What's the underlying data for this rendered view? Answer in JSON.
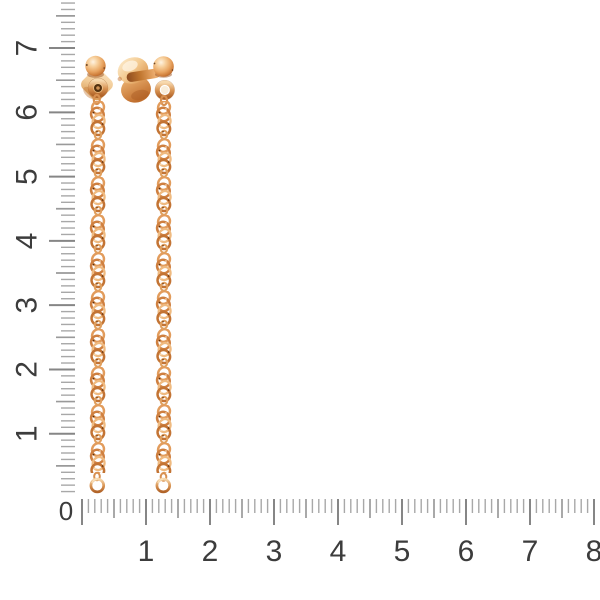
{
  "colors": {
    "background": "#ffffff",
    "tick_minor": "#a8a8a8",
    "tick_half": "#9a9a9a",
    "tick_major": "#868686",
    "number_color": "#3c3c3c",
    "gold_highlight": "#fdf0da",
    "gold_light": "#f6d2a0",
    "gold_mid": "#e8a461",
    "gold_deep": "#c47434",
    "gold_shadow": "#8a4517"
  },
  "rulers": {
    "origin_label": "0",
    "vertical": {
      "side": "left",
      "unit_labels": [
        "1",
        "2",
        "3",
        "4",
        "5",
        "6",
        "7"
      ],
      "minor_ticks": 77
    },
    "horizontal": {
      "side": "bottom",
      "unit_labels": [
        "1",
        "2",
        "3",
        "4",
        "5",
        "6",
        "7",
        "8"
      ],
      "minor_ticks": 81
    }
  }
}
